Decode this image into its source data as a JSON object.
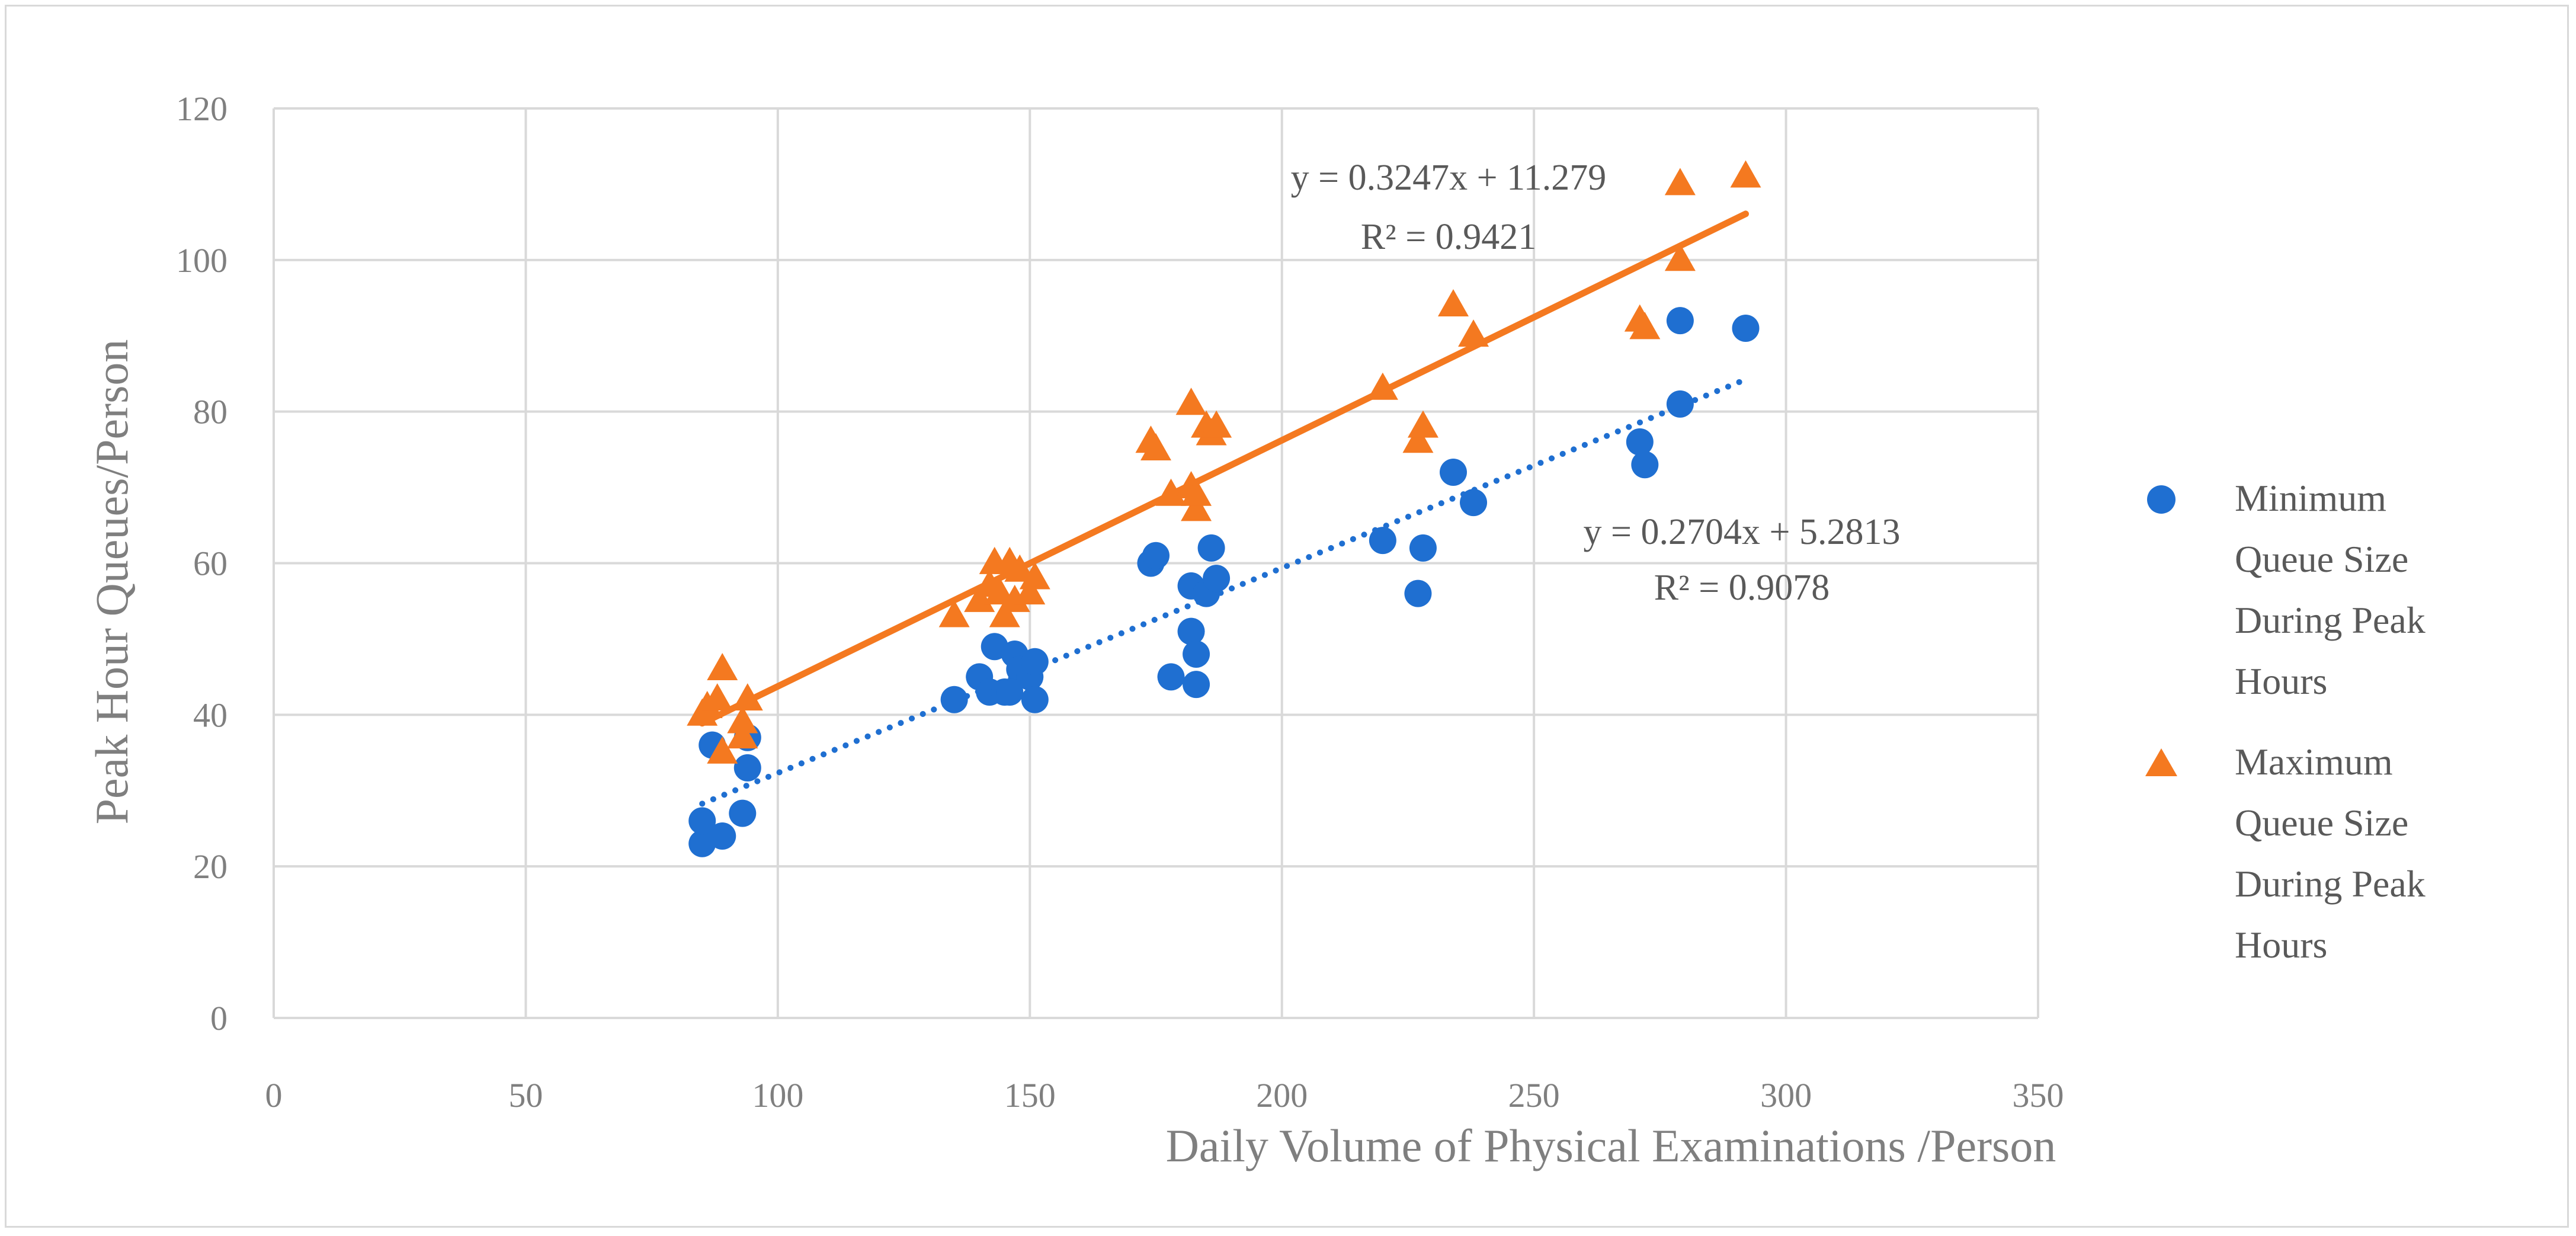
{
  "chart_data": {
    "type": "scatter",
    "title": "",
    "xlabel": "Daily Volume of Physical Examinations /Person",
    "ylabel": "Peak Hour Queues/Person",
    "xlim": [
      0,
      350
    ],
    "ylim": [
      0,
      120
    ],
    "x_ticks": [
      0,
      50,
      100,
      150,
      200,
      250,
      300,
      350
    ],
    "y_ticks": [
      0,
      20,
      40,
      60,
      80,
      100,
      120
    ],
    "grid": true,
    "legend_position": "right",
    "colors": {
      "min": "#1f6fd1",
      "max": "#f47920",
      "grid": "#d9d9d9",
      "text": "#7f7f7f"
    },
    "series": [
      {
        "name": "Minimum Queue Size During Peak Hours",
        "legend_lines": [
          "Minimum",
          "Queue Size",
          "During Peak",
          "Hours"
        ],
        "marker": "circle",
        "points": [
          [
            85,
            23
          ],
          [
            85,
            26
          ],
          [
            87,
            36
          ],
          [
            89,
            24
          ],
          [
            93,
            27
          ],
          [
            94,
            33
          ],
          [
            94,
            37
          ],
          [
            135,
            42
          ],
          [
            140,
            45
          ],
          [
            142,
            43
          ],
          [
            143,
            49
          ],
          [
            145,
            43
          ],
          [
            147,
            48
          ],
          [
            148,
            46
          ],
          [
            150,
            45
          ],
          [
            151,
            47
          ],
          [
            151,
            42
          ],
          [
            146,
            43
          ],
          [
            174,
            60
          ],
          [
            175,
            61
          ],
          [
            178,
            45
          ],
          [
            182,
            57
          ],
          [
            182,
            51
          ],
          [
            183,
            48
          ],
          [
            183,
            44
          ],
          [
            185,
            56
          ],
          [
            186,
            62
          ],
          [
            187,
            58
          ],
          [
            220,
            63
          ],
          [
            227,
            56
          ],
          [
            228,
            62
          ],
          [
            234,
            72
          ],
          [
            238,
            68
          ],
          [
            271,
            76
          ],
          [
            272,
            73
          ],
          [
            279,
            92
          ],
          [
            279,
            81
          ],
          [
            292,
            91
          ]
        ],
        "trendline": {
          "style": "dotted",
          "slope": 0.2704,
          "intercept": 5.2813,
          "x_range": [
            85,
            292
          ],
          "equation": "y = 0.2704x + 5.2813",
          "r2": "R² = 0.9078"
        }
      },
      {
        "name": "Maximum Queue Size During Peak Hours",
        "legend_lines": [
          "Maximum",
          "Queue Size",
          "During Peak",
          "Hours"
        ],
        "marker": "triangle",
        "points": [
          [
            85,
            40
          ],
          [
            86,
            41
          ],
          [
            88,
            42
          ],
          [
            89,
            46
          ],
          [
            89,
            35
          ],
          [
            93,
            37
          ],
          [
            93,
            39
          ],
          [
            94,
            42
          ],
          [
            135,
            53
          ],
          [
            140,
            55
          ],
          [
            142,
            57
          ],
          [
            143,
            60
          ],
          [
            144,
            56
          ],
          [
            145,
            53
          ],
          [
            146,
            60
          ],
          [
            147,
            55
          ],
          [
            148,
            59
          ],
          [
            150,
            56
          ],
          [
            151,
            58
          ],
          [
            174,
            76
          ],
          [
            175,
            75
          ],
          [
            178,
            69
          ],
          [
            182,
            81
          ],
          [
            182,
            70
          ],
          [
            183,
            67
          ],
          [
            183,
            69
          ],
          [
            185,
            78
          ],
          [
            186,
            77
          ],
          [
            187,
            78
          ],
          [
            220,
            83
          ],
          [
            227,
            76
          ],
          [
            228,
            78
          ],
          [
            234,
            94
          ],
          [
            238,
            90
          ],
          [
            271,
            92
          ],
          [
            272,
            91
          ],
          [
            279,
            110
          ],
          [
            279,
            100
          ],
          [
            292,
            111
          ]
        ],
        "trendline": {
          "style": "solid",
          "slope": 0.3247,
          "intercept": 11.279,
          "x_range": [
            85,
            292
          ],
          "equation": "y = 0.3247x + 11.279",
          "r2": "R² = 0.9421"
        }
      }
    ]
  }
}
